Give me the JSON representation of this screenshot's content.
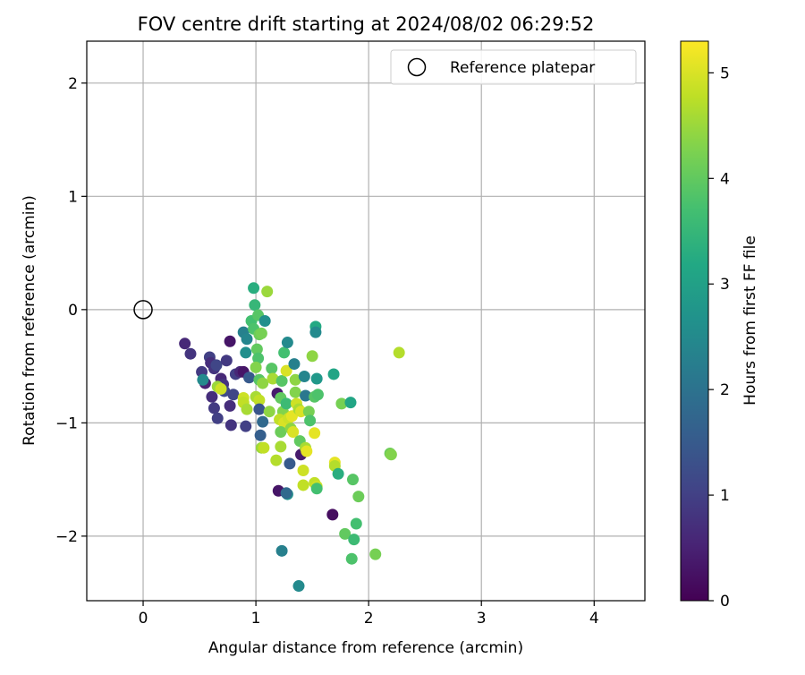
{
  "chart_data": {
    "type": "scatter",
    "title": "FOV centre drift starting at 2024/08/02 06:29:52",
    "xlabel": "Angular distance from reference (arcmin)",
    "ylabel": "Rotation from reference (arcmin)",
    "xlim": [
      -0.5,
      4.45
    ],
    "ylim": [
      -2.57,
      2.37
    ],
    "xticks": [
      0,
      1,
      2,
      3,
      4
    ],
    "xtick_labels": [
      "0",
      "1",
      "2",
      "3",
      "4"
    ],
    "yticks": [
      -2,
      -1,
      0,
      1,
      2
    ],
    "ytick_labels": [
      "−2",
      "−1",
      "0",
      "1",
      "2"
    ],
    "grid": true,
    "legend": {
      "placement": "top-right",
      "label": "Reference platepar"
    },
    "reference_point": {
      "x": 0,
      "y": 0
    },
    "colorbar": {
      "label": "Hours from first FF file",
      "range": [
        0,
        5.3
      ],
      "ticks": [
        0,
        1,
        2,
        3,
        4,
        5
      ],
      "tick_labels": [
        "0",
        "1",
        "2",
        "3",
        "4",
        "5"
      ]
    },
    "points": [
      {
        "x": 0.37,
        "y": -0.3,
        "h": 0.6
      },
      {
        "x": 0.42,
        "y": -0.39,
        "h": 0.8
      },
      {
        "x": 0.52,
        "y": -0.55,
        "h": 0.9
      },
      {
        "x": 0.55,
        "y": -0.65,
        "h": 0.5
      },
      {
        "x": 0.59,
        "y": -0.42,
        "h": 1.0
      },
      {
        "x": 0.6,
        "y": -0.47,
        "h": 0.7
      },
      {
        "x": 0.63,
        "y": -0.52,
        "h": 0.8
      },
      {
        "x": 0.65,
        "y": -0.49,
        "h": 1.1
      },
      {
        "x": 0.61,
        "y": -0.77,
        "h": 0.7
      },
      {
        "x": 0.63,
        "y": -0.87,
        "h": 0.9
      },
      {
        "x": 0.66,
        "y": -0.96,
        "h": 1.0
      },
      {
        "x": 0.69,
        "y": -0.61,
        "h": 0.6
      },
      {
        "x": 0.71,
        "y": -0.66,
        "h": 0.8
      },
      {
        "x": 0.72,
        "y": -0.72,
        "h": 1.2
      },
      {
        "x": 0.74,
        "y": -0.45,
        "h": 0.9
      },
      {
        "x": 0.77,
        "y": -0.28,
        "h": 0.3
      },
      {
        "x": 0.77,
        "y": -0.85,
        "h": 0.7
      },
      {
        "x": 0.78,
        "y": -1.02,
        "h": 0.8
      },
      {
        "x": 0.8,
        "y": -0.75,
        "h": 1.1
      },
      {
        "x": 0.82,
        "y": -0.57,
        "h": 1.0
      },
      {
        "x": 0.86,
        "y": -0.55,
        "h": 0.6
      },
      {
        "x": 0.89,
        "y": -0.55,
        "h": 0.3
      },
      {
        "x": 0.91,
        "y": -1.03,
        "h": 1.0
      },
      {
        "x": 0.53,
        "y": -0.62,
        "h": 2.5
      },
      {
        "x": 0.66,
        "y": -0.68,
        "h": 4.5
      },
      {
        "x": 0.69,
        "y": -0.7,
        "h": 4.9
      },
      {
        "x": 0.89,
        "y": -0.78,
        "h": 4.9
      },
      {
        "x": 0.89,
        "y": -0.82,
        "h": 4.8
      },
      {
        "x": 0.92,
        "y": -0.88,
        "h": 4.6
      },
      {
        "x": 0.89,
        "y": -0.2,
        "h": 2.3
      },
      {
        "x": 0.92,
        "y": -0.26,
        "h": 2.4
      },
      {
        "x": 0.91,
        "y": -0.38,
        "h": 2.6
      },
      {
        "x": 0.94,
        "y": -0.6,
        "h": 1.5
      },
      {
        "x": 0.98,
        "y": 0.19,
        "h": 3.3
      },
      {
        "x": 0.99,
        "y": 0.04,
        "h": 3.5
      },
      {
        "x": 0.96,
        "y": -0.1,
        "h": 3.7
      },
      {
        "x": 0.98,
        "y": -0.17,
        "h": 3.8
      },
      {
        "x": 1.02,
        "y": -0.05,
        "h": 3.9
      },
      {
        "x": 1.03,
        "y": -0.22,
        "h": 4.1
      },
      {
        "x": 1.08,
        "y": -0.1,
        "h": 2.6
      },
      {
        "x": 1.1,
        "y": 0.16,
        "h": 4.5
      },
      {
        "x": 1.05,
        "y": -0.21,
        "h": 4.2
      },
      {
        "x": 1.01,
        "y": -0.35,
        "h": 4.0
      },
      {
        "x": 1.02,
        "y": -0.43,
        "h": 3.8
      },
      {
        "x": 1.0,
        "y": -0.51,
        "h": 4.3
      },
      {
        "x": 1.03,
        "y": -0.62,
        "h": 3.9
      },
      {
        "x": 1.06,
        "y": -0.65,
        "h": 4.4
      },
      {
        "x": 1.0,
        "y": -0.77,
        "h": 4.6
      },
      {
        "x": 1.03,
        "y": -0.8,
        "h": 4.8
      },
      {
        "x": 1.03,
        "y": -0.88,
        "h": 1.4
      },
      {
        "x": 1.06,
        "y": -0.99,
        "h": 1.8
      },
      {
        "x": 1.04,
        "y": -1.11,
        "h": 1.6
      },
      {
        "x": 1.05,
        "y": -1.22,
        "h": 4.5
      },
      {
        "x": 1.07,
        "y": -1.22,
        "h": 4.8
      },
      {
        "x": 1.12,
        "y": -0.9,
        "h": 4.4
      },
      {
        "x": 1.14,
        "y": -0.52,
        "h": 3.9
      },
      {
        "x": 1.15,
        "y": -0.61,
        "h": 4.6
      },
      {
        "x": 1.19,
        "y": -0.74,
        "h": 0.4
      },
      {
        "x": 1.18,
        "y": -1.33,
        "h": 4.7
      },
      {
        "x": 1.2,
        "y": -1.6,
        "h": 0.3
      },
      {
        "x": 1.22,
        "y": -0.78,
        "h": 4.0
      },
      {
        "x": 1.23,
        "y": -0.63,
        "h": 3.9
      },
      {
        "x": 1.24,
        "y": -0.9,
        "h": 4.3
      },
      {
        "x": 1.21,
        "y": -0.97,
        "h": 4.8
      },
      {
        "x": 1.25,
        "y": -1.0,
        "h": 5.0
      },
      {
        "x": 1.22,
        "y": -1.08,
        "h": 4.1
      },
      {
        "x": 1.22,
        "y": -1.21,
        "h": 4.6
      },
      {
        "x": 1.25,
        "y": -0.38,
        "h": 3.7
      },
      {
        "x": 1.27,
        "y": -0.54,
        "h": 5.0
      },
      {
        "x": 1.28,
        "y": -0.29,
        "h": 2.5
      },
      {
        "x": 1.27,
        "y": -0.83,
        "h": 3.6
      },
      {
        "x": 1.29,
        "y": -0.96,
        "h": 4.9
      },
      {
        "x": 1.32,
        "y": -0.94,
        "h": 5.1
      },
      {
        "x": 1.31,
        "y": -1.05,
        "h": 4.4
      },
      {
        "x": 1.33,
        "y": -1.08,
        "h": 5.0
      },
      {
        "x": 1.35,
        "y": -0.62,
        "h": 4.4
      },
      {
        "x": 1.35,
        "y": -0.73,
        "h": 4.3
      },
      {
        "x": 1.36,
        "y": -0.83,
        "h": 4.9
      },
      {
        "x": 1.34,
        "y": -0.48,
        "h": 2.3
      },
      {
        "x": 1.3,
        "y": -1.36,
        "h": 1.5
      },
      {
        "x": 1.28,
        "y": -1.63,
        "h": 2.6
      },
      {
        "x": 1.27,
        "y": -1.62,
        "h": 1.8
      },
      {
        "x": 1.23,
        "y": -2.13,
        "h": 2.3
      },
      {
        "x": 1.38,
        "y": -2.44,
        "h": 2.5
      },
      {
        "x": 1.39,
        "y": -1.16,
        "h": 4.0
      },
      {
        "x": 1.38,
        "y": -0.88,
        "h": 4.6
      },
      {
        "x": 1.4,
        "y": -0.9,
        "h": 5.0
      },
      {
        "x": 1.4,
        "y": -1.28,
        "h": 0.4
      },
      {
        "x": 1.42,
        "y": -1.42,
        "h": 4.9
      },
      {
        "x": 1.42,
        "y": -1.55,
        "h": 4.8
      },
      {
        "x": 1.43,
        "y": -0.59,
        "h": 2.4
      },
      {
        "x": 1.44,
        "y": -0.76,
        "h": 2.1
      },
      {
        "x": 1.44,
        "y": -1.22,
        "h": 4.6
      },
      {
        "x": 1.45,
        "y": -1.25,
        "h": 5.1
      },
      {
        "x": 1.47,
        "y": -0.9,
        "h": 4.2
      },
      {
        "x": 1.48,
        "y": -0.98,
        "h": 3.8
      },
      {
        "x": 1.5,
        "y": -0.41,
        "h": 4.4
      },
      {
        "x": 1.52,
        "y": -0.77,
        "h": 3.9
      },
      {
        "x": 1.52,
        "y": -1.09,
        "h": 5.1
      },
      {
        "x": 1.52,
        "y": -1.53,
        "h": 4.8
      },
      {
        "x": 1.54,
        "y": -1.56,
        "h": 4.9
      },
      {
        "x": 1.53,
        "y": -0.15,
        "h": 3.2
      },
      {
        "x": 1.53,
        "y": -0.2,
        "h": 2.5
      },
      {
        "x": 1.54,
        "y": -0.61,
        "h": 2.8
      },
      {
        "x": 1.55,
        "y": -0.75,
        "h": 3.8
      },
      {
        "x": 1.54,
        "y": -1.58,
        "h": 3.7
      },
      {
        "x": 1.68,
        "y": -1.81,
        "h": 0.2
      },
      {
        "x": 1.69,
        "y": -0.57,
        "h": 3.1
      },
      {
        "x": 1.7,
        "y": -1.35,
        "h": 5.1
      },
      {
        "x": 1.7,
        "y": -1.38,
        "h": 4.7
      },
      {
        "x": 1.73,
        "y": -1.45,
        "h": 3.3
      },
      {
        "x": 1.76,
        "y": -0.83,
        "h": 4.2
      },
      {
        "x": 1.79,
        "y": -1.98,
        "h": 4.0
      },
      {
        "x": 1.84,
        "y": -0.82,
        "h": 3.1
      },
      {
        "x": 1.85,
        "y": -2.2,
        "h": 3.8
      },
      {
        "x": 1.86,
        "y": -1.5,
        "h": 3.9
      },
      {
        "x": 1.87,
        "y": -2.03,
        "h": 3.6
      },
      {
        "x": 1.89,
        "y": -1.89,
        "h": 3.7
      },
      {
        "x": 1.91,
        "y": -1.65,
        "h": 4.1
      },
      {
        "x": 2.06,
        "y": -2.16,
        "h": 4.2
      },
      {
        "x": 2.19,
        "y": -1.27,
        "h": 4.1
      },
      {
        "x": 2.2,
        "y": -1.28,
        "h": 4.3
      },
      {
        "x": 2.27,
        "y": -0.38,
        "h": 4.7
      }
    ]
  }
}
